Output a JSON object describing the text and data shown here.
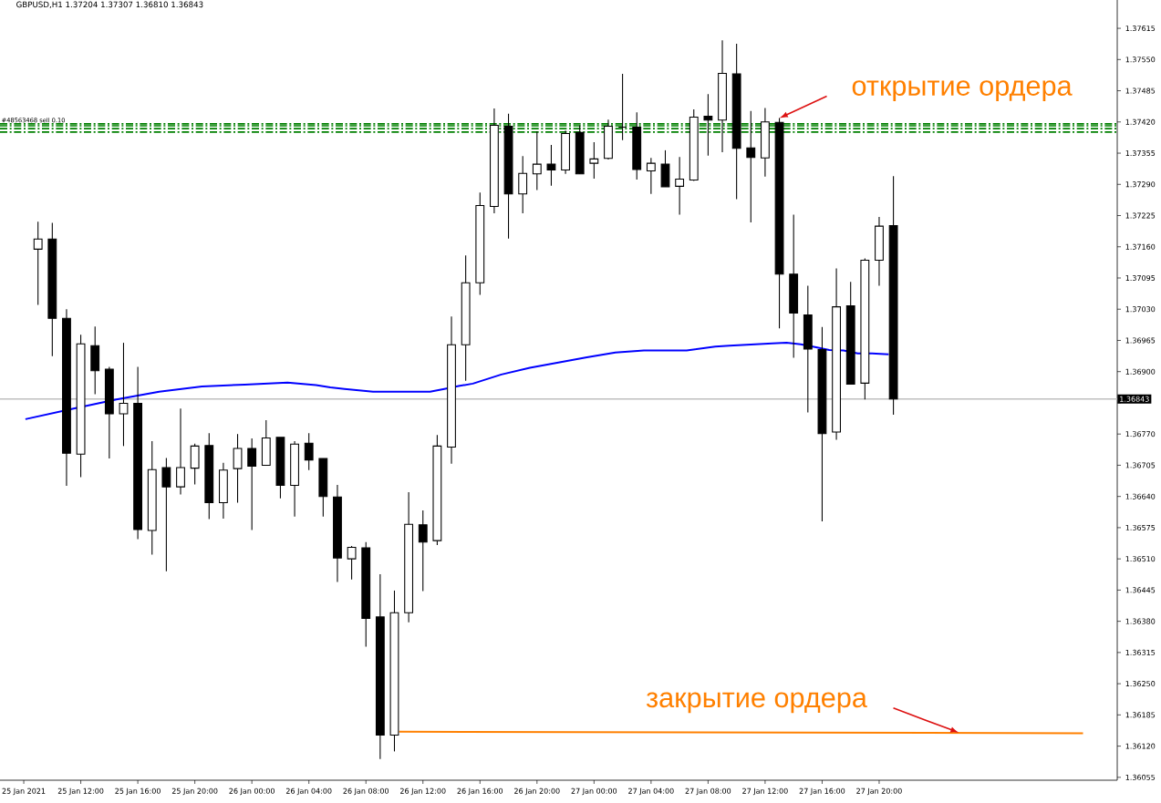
{
  "chart_data": {
    "type": "candlestick",
    "title": "GBPUSD,H1  1.37204 1.37307 1.36810 1.36843",
    "x": [
      "2021-01-25T09:00",
      "2021-01-25T10:00",
      "2021-01-25T11:00",
      "2021-01-25T12:00",
      "2021-01-25T13:00",
      "2021-01-25T14:00",
      "2021-01-25T15:00",
      "2021-01-25T16:00",
      "2021-01-25T17:00",
      "2021-01-25T18:00",
      "2021-01-25T19:00",
      "2021-01-25T20:00",
      "2021-01-25T21:00",
      "2021-01-25T22:00",
      "2021-01-25T23:00",
      "2021-01-26T00:00",
      "2021-01-26T01:00",
      "2021-01-26T02:00",
      "2021-01-26T03:00",
      "2021-01-26T04:00",
      "2021-01-26T05:00",
      "2021-01-26T06:00",
      "2021-01-26T07:00",
      "2021-01-26T08:00",
      "2021-01-26T09:00",
      "2021-01-26T10:00",
      "2021-01-26T11:00",
      "2021-01-26T12:00",
      "2021-01-26T13:00",
      "2021-01-26T14:00",
      "2021-01-26T15:00",
      "2021-01-26T16:00",
      "2021-01-26T17:00",
      "2021-01-26T18:00",
      "2021-01-26T19:00",
      "2021-01-26T20:00",
      "2021-01-26T21:00",
      "2021-01-26T22:00",
      "2021-01-26T23:00",
      "2021-01-27T00:00",
      "2021-01-27T01:00",
      "2021-01-27T02:00",
      "2021-01-27T03:00",
      "2021-01-27T04:00",
      "2021-01-27T05:00",
      "2021-01-27T06:00",
      "2021-01-27T07:00",
      "2021-01-27T08:00",
      "2021-01-27T09:00",
      "2021-01-27T10:00",
      "2021-01-27T11:00",
      "2021-01-27T12:00",
      "2021-01-27T13:00",
      "2021-01-27T14:00",
      "2021-01-27T15:00",
      "2021-01-27T16:00",
      "2021-01-27T17:00",
      "2021-01-27T18:00",
      "2021-01-27T19:00",
      "2021-01-27T20:00",
      "2021-01-27T21:00"
    ],
    "ohlc": [
      [
        1.37155,
        1.37212,
        1.37039,
        1.37176
      ],
      [
        1.37176,
        1.3721,
        1.36932,
        1.37011
      ],
      [
        1.37011,
        1.3703,
        1.36662,
        1.3673
      ],
      [
        1.36728,
        1.36977,
        1.3668,
        1.36958
      ],
      [
        1.36954,
        1.36994,
        1.36853,
        1.36902
      ],
      [
        1.36905,
        1.3691,
        1.36719,
        1.36812
      ],
      [
        1.36812,
        1.3696,
        1.36745,
        1.36834
      ],
      [
        1.36834,
        1.3691,
        1.36551,
        1.36571
      ],
      [
        1.36569,
        1.36755,
        1.36519,
        1.36696
      ],
      [
        1.367,
        1.3672,
        1.36484,
        1.3666
      ],
      [
        1.3666,
        1.36823,
        1.36644,
        1.367
      ],
      [
        1.36699,
        1.3675,
        1.36665,
        1.36745
      ],
      [
        1.36746,
        1.36772,
        1.36593,
        1.36627
      ],
      [
        1.36627,
        1.3671,
        1.36594,
        1.36695
      ],
      [
        1.36698,
        1.3677,
        1.36627,
        1.3674
      ],
      [
        1.3674,
        1.36761,
        1.3657,
        1.36703
      ],
      [
        1.36705,
        1.36799,
        1.36705,
        1.36762
      ],
      [
        1.36763,
        1.36763,
        1.36636,
        1.36663
      ],
      [
        1.36663,
        1.36755,
        1.36598,
        1.36749
      ],
      [
        1.36751,
        1.36772,
        1.36695,
        1.36716
      ],
      [
        1.36719,
        1.36719,
        1.36598,
        1.3664
      ],
      [
        1.36639,
        1.36664,
        1.36462,
        1.36512
      ],
      [
        1.3651,
        1.36537,
        1.36467,
        1.36534
      ],
      [
        1.36533,
        1.36545,
        1.36327,
        1.36386
      ],
      [
        1.36389,
        1.36478,
        1.36093,
        1.36143
      ],
      [
        1.36143,
        1.36444,
        1.36109,
        1.36398
      ],
      [
        1.36398,
        1.36649,
        1.36378,
        1.36582
      ],
      [
        1.36581,
        1.36611,
        1.36443,
        1.36545
      ],
      [
        1.36548,
        1.36768,
        1.36539,
        1.36745
      ],
      [
        1.36743,
        1.37015,
        1.36708,
        1.36956
      ],
      [
        1.36956,
        1.37142,
        1.36881,
        1.37085
      ],
      [
        1.37085,
        1.37273,
        1.3706,
        1.37246
      ],
      [
        1.37244,
        1.37448,
        1.3723,
        1.37413
      ],
      [
        1.37411,
        1.37437,
        1.37177,
        1.3727
      ],
      [
        1.3727,
        1.37349,
        1.3723,
        1.37313
      ],
      [
        1.37312,
        1.374,
        1.37278,
        1.37332
      ],
      [
        1.37332,
        1.37372,
        1.37287,
        1.3732
      ],
      [
        1.3732,
        1.37402,
        1.37312,
        1.37396
      ],
      [
        1.37398,
        1.37413,
        1.37312,
        1.37312
      ],
      [
        1.37334,
        1.37378,
        1.37302,
        1.37343
      ],
      [
        1.37344,
        1.37425,
        1.37342,
        1.37411
      ],
      [
        1.37409,
        1.3752,
        1.37382,
        1.37409
      ],
      [
        1.37409,
        1.3744,
        1.373,
        1.37321
      ],
      [
        1.37318,
        1.37345,
        1.3727,
        1.37334
      ],
      [
        1.37332,
        1.37361,
        1.37285,
        1.37285
      ],
      [
        1.37286,
        1.37347,
        1.37227,
        1.37301
      ],
      [
        1.37299,
        1.37446,
        1.37297,
        1.3743
      ],
      [
        1.37432,
        1.37478,
        1.3735,
        1.37424
      ],
      [
        1.37424,
        1.3759,
        1.37357,
        1.37521
      ],
      [
        1.3752,
        1.37583,
        1.37259,
        1.37365
      ],
      [
        1.37366,
        1.37443,
        1.37211,
        1.37346
      ],
      [
        1.37345,
        1.37449,
        1.37306,
        1.3742
      ],
      [
        1.37419,
        1.37428,
        1.3699,
        1.37103
      ],
      [
        1.37103,
        1.37227,
        1.36929,
        1.37022
      ],
      [
        1.37018,
        1.37079,
        1.36815,
        1.36947
      ],
      [
        1.36946,
        1.36993,
        1.36588,
        1.36771
      ],
      [
        1.36774,
        1.37115,
        1.36758,
        1.37035
      ],
      [
        1.37037,
        1.37087,
        1.36874,
        1.36874
      ],
      [
        1.36876,
        1.37136,
        1.36842,
        1.37132
      ],
      [
        1.37132,
        1.37222,
        1.37079,
        1.37203
      ],
      [
        1.37204,
        1.37307,
        1.3681,
        1.36843
      ]
    ],
    "series": [
      {
        "type": "line",
        "color": "#0000ff",
        "x": [
          "2021-01-25T08:07",
          "2021-01-25T11:30",
          "2021-01-25T14:30",
          "2021-01-25T17:30",
          "2021-01-25T20:30",
          "2021-01-25T23:30",
          "2021-01-26T02:30",
          "2021-01-26T04:30",
          "2021-01-26T05:30",
          "2021-01-26T06:30",
          "2021-01-26T08:30",
          "2021-01-26T12:30",
          "2021-01-26T13:30",
          "2021-01-26T14:30",
          "2021-01-26T15:30",
          "2021-01-26T17:30",
          "2021-01-26T19:30",
          "2021-01-26T21:30",
          "2021-01-26T23:30",
          "2021-01-27T01:30",
          "2021-01-27T03:30",
          "2021-01-27T06:30",
          "2021-01-27T08:30",
          "2021-01-27T09:30",
          "2021-01-27T12:30",
          "2021-01-27T13:30",
          "2021-01-27T14:30",
          "2021-01-27T15:30",
          "2021-01-27T16:30",
          "2021-01-27T17:30",
          "2021-01-27T18:30",
          "2021-01-27T19:30",
          "2021-01-27T20:40"
        ],
        "values": [
          1.36801,
          1.36823,
          1.36842,
          1.36858,
          1.36869,
          1.36873,
          1.36877,
          1.36872,
          1.36867,
          1.36864,
          1.36858,
          1.36858,
          1.36864,
          1.3687,
          1.36875,
          1.36894,
          1.36908,
          1.36919,
          1.3693,
          1.3694,
          1.36944,
          1.36944,
          1.36952,
          1.36954,
          1.36959,
          1.3696,
          1.36957,
          1.36951,
          1.36945,
          1.36944,
          1.36938,
          1.36938,
          1.36936
        ]
      },
      {
        "type": "line",
        "color": "#ff8000",
        "x": [
          "2021-01-26T10:20",
          "2021-01-28T10:18"
        ],
        "values": [
          1.3615,
          1.36147
        ]
      }
    ],
    "ref_lines": [
      {
        "axis": "y",
        "value": 1.37416,
        "label": "#48563468 sell 0.10",
        "color": "#008000",
        "line_style": "dashed"
      },
      {
        "axis": "y",
        "value": 1.37412,
        "color": "#008000",
        "line_style": "dashed"
      },
      {
        "axis": "y",
        "value": 1.37406,
        "color": "#008000",
        "line_style": "dashed"
      },
      {
        "axis": "y",
        "value": 1.37399,
        "color": "#008000",
        "line_style": "dashed"
      },
      {
        "axis": "y",
        "value": 1.36843,
        "label": "1.36843",
        "color": "#c0c0c0",
        "line_style": "solid"
      }
    ],
    "annotations": [
      {
        "text": "открытие ордера",
        "x": "2021-01-27T13:00",
        "y": 1.37428
      },
      {
        "text": "закрытие ордера",
        "x": "2021-01-28T01:36",
        "y": 1.36148
      }
    ],
    "xlim": [
      "2021-01-25T06:20",
      "2021-01-28T12:42"
    ],
    "ylim": [
      1.36049,
      1.37674
    ],
    "xticks": [
      {
        "value": "2021-01-25T08:00",
        "label": "25 Jan 2021"
      },
      {
        "value": "2021-01-25T12:00",
        "label": "25 Jan 12:00"
      },
      {
        "value": "2021-01-25T16:00",
        "label": "25 Jan 16:00"
      },
      {
        "value": "2021-01-25T20:00",
        "label": "25 Jan 20:00"
      },
      {
        "value": "2021-01-26T00:00",
        "label": "26 Jan 00:00"
      },
      {
        "value": "2021-01-26T04:00",
        "label": "26 Jan 04:00"
      },
      {
        "value": "2021-01-26T08:00",
        "label": "26 Jan 08:00"
      },
      {
        "value": "2021-01-26T12:00",
        "label": "26 Jan 12:00"
      },
      {
        "value": "2021-01-26T16:00",
        "label": "26 Jan 16:00"
      },
      {
        "value": "2021-01-26T20:00",
        "label": "26 Jan 20:00"
      },
      {
        "value": "2021-01-27T00:00",
        "label": "27 Jan 00:00"
      },
      {
        "value": "2021-01-27T04:00",
        "label": "27 Jan 04:00"
      },
      {
        "value": "2021-01-27T08:00",
        "label": "27 Jan 08:00"
      },
      {
        "value": "2021-01-27T12:00",
        "label": "27 Jan 12:00"
      },
      {
        "value": "2021-01-27T16:00",
        "label": "27 Jan 16:00"
      },
      {
        "value": "2021-01-27T20:00",
        "label": "27 Jan 20:00"
      }
    ],
    "yticks": [
      {
        "value": 1.37615,
        "label": "1.37615"
      },
      {
        "value": 1.3755,
        "label": "1.37550"
      },
      {
        "value": 1.37485,
        "label": "1.37485"
      },
      {
        "value": 1.3742,
        "label": "1.37420"
      },
      {
        "value": 1.37355,
        "label": "1.37355"
      },
      {
        "value": 1.3729,
        "label": "1.37290"
      },
      {
        "value": 1.37225,
        "label": "1.37225"
      },
      {
        "value": 1.3716,
        "label": "1.37160"
      },
      {
        "value": 1.37095,
        "label": "1.37095"
      },
      {
        "value": 1.3703,
        "label": "1.37030"
      },
      {
        "value": 1.36965,
        "label": "1.36965"
      },
      {
        "value": 1.369,
        "label": "1.36900"
      },
      {
        "value": 1.36835,
        "label": null
      },
      {
        "value": 1.3677,
        "label": "1.36770"
      },
      {
        "value": 1.36705,
        "label": "1.36705"
      },
      {
        "value": 1.3664,
        "label": "1.36640"
      },
      {
        "value": 1.36575,
        "label": "1.36575"
      },
      {
        "value": 1.3651,
        "label": "1.36510"
      },
      {
        "value": 1.36445,
        "label": "1.36445"
      },
      {
        "value": 1.3638,
        "label": "1.36380"
      },
      {
        "value": 1.36315,
        "label": "1.36315"
      },
      {
        "value": 1.3625,
        "label": "1.36250"
      },
      {
        "value": 1.36185,
        "label": "1.36185"
      },
      {
        "value": 1.3612,
        "label": "1.36120"
      },
      {
        "value": 1.36055,
        "label": "1.36055"
      }
    ]
  }
}
